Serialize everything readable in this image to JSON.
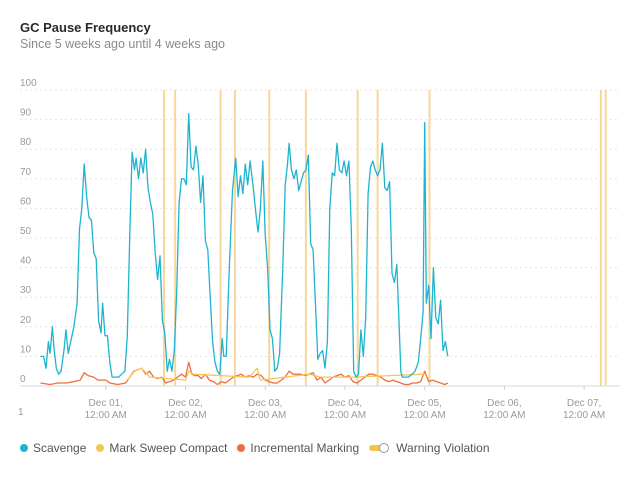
{
  "panel": {
    "title": "GC Pause Frequency",
    "subtitle": "Since 5 weeks ago until 4 weeks ago",
    "corner_label": "1"
  },
  "legend": [
    {
      "label": "Scavenge",
      "color": "#1eb3cf"
    },
    {
      "label": "Mark Sweep Compact",
      "color": "#f5c758"
    },
    {
      "label": "Incremental Marking",
      "color": "#f06e3e"
    },
    {
      "label": "Warning Violation",
      "color": "#f4c44e",
      "icon": "toggle-icon"
    }
  ],
  "chart_data": {
    "type": "line",
    "title": "GC Pause Frequency",
    "subtitle": "Since 5 weeks ago until 4 weeks ago",
    "ylim": [
      0,
      100
    ],
    "y_ticks": [
      "100",
      "90",
      "80",
      "70",
      "60",
      "50",
      "40",
      "30",
      "20",
      "10",
      "0"
    ],
    "x_ticks": [
      {
        "line1": "Dec 01,",
        "line2": "12:00 AM",
        "t": 0.5
      },
      {
        "line1": "Dec 02,",
        "line2": "12:00 AM",
        "t": 1.5
      },
      {
        "line1": "Dec 03,",
        "line2": "12:00 AM",
        "t": 2.5
      },
      {
        "line1": "Dec 04,",
        "line2": "12:00 AM",
        "t": 3.5
      },
      {
        "line1": "Dec 05,",
        "line2": "12:00 AM",
        "t": 4.5
      },
      {
        "line1": "Dec 06,",
        "line2": "12:00 AM",
        "t": 5.5
      },
      {
        "line1": "Dec 07,",
        "line2": "12:00 AM",
        "t": 6.5
      }
    ],
    "x_range": [
      -0.35,
      6.95
    ],
    "grid": true,
    "legend_position": "bottom",
    "warning_violations": [
      1.23,
      1.37,
      1.94,
      2.12,
      2.55,
      3.01,
      3.66,
      3.91,
      4.56,
      6.71,
      6.77
    ],
    "series": [
      {
        "name": "Scavenge",
        "color": "#1eb3cf",
        "points": [
          [
            -0.32,
            10
          ],
          [
            -0.28,
            10
          ],
          [
            -0.25,
            6
          ],
          [
            -0.22,
            15
          ],
          [
            -0.2,
            11
          ],
          [
            -0.17,
            20
          ],
          [
            -0.15,
            13
          ],
          [
            -0.12,
            6
          ],
          [
            -0.09,
            4
          ],
          [
            -0.06,
            5
          ],
          [
            -0.02,
            13
          ],
          [
            0,
            19
          ],
          [
            0.03,
            11
          ],
          [
            0.06,
            15
          ],
          [
            0.1,
            20
          ],
          [
            0.14,
            28
          ],
          [
            0.17,
            53
          ],
          [
            0.2,
            60
          ],
          [
            0.23,
            75
          ],
          [
            0.26,
            64
          ],
          [
            0.29,
            57
          ],
          [
            0.32,
            56
          ],
          [
            0.35,
            45
          ],
          [
            0.38,
            43
          ],
          [
            0.41,
            22
          ],
          [
            0.44,
            18
          ],
          [
            0.46,
            28
          ],
          [
            0.49,
            17
          ],
          [
            0.52,
            17
          ],
          [
            0.55,
            8
          ],
          [
            0.58,
            3
          ],
          [
            0.62,
            3
          ],
          [
            0.66,
            3
          ],
          [
            0.7,
            4
          ],
          [
            0.74,
            5
          ],
          [
            0.77,
            17
          ],
          [
            0.8,
            50
          ],
          [
            0.83,
            79
          ],
          [
            0.86,
            73
          ],
          [
            0.88,
            77
          ],
          [
            0.91,
            70
          ],
          [
            0.94,
            77
          ],
          [
            0.97,
            72
          ],
          [
            1.0,
            80
          ],
          [
            1.03,
            67
          ],
          [
            1.06,
            62
          ],
          [
            1.09,
            58
          ],
          [
            1.12,
            45
          ],
          [
            1.15,
            36
          ],
          [
            1.18,
            44
          ],
          [
            1.21,
            22
          ],
          [
            1.24,
            18
          ],
          [
            1.27,
            5
          ],
          [
            1.3,
            9
          ],
          [
            1.33,
            5
          ],
          [
            1.36,
            12
          ],
          [
            1.39,
            32
          ],
          [
            1.42,
            62
          ],
          [
            1.45,
            70
          ],
          [
            1.48,
            70
          ],
          [
            1.51,
            68
          ],
          [
            1.54,
            92
          ],
          [
            1.57,
            74
          ],
          [
            1.6,
            73
          ],
          [
            1.63,
            81
          ],
          [
            1.66,
            75
          ],
          [
            1.69,
            62
          ],
          [
            1.72,
            71
          ],
          [
            1.75,
            49
          ],
          [
            1.78,
            46
          ],
          [
            1.81,
            30
          ],
          [
            1.84,
            15
          ],
          [
            1.87,
            8
          ],
          [
            1.9,
            5
          ],
          [
            1.93,
            4
          ],
          [
            1.96,
            16
          ],
          [
            1.98,
            10
          ],
          [
            2.01,
            10
          ],
          [
            2.05,
            40
          ],
          [
            2.09,
            66
          ],
          [
            2.13,
            77
          ],
          [
            2.16,
            64
          ],
          [
            2.19,
            71
          ],
          [
            2.22,
            65
          ],
          [
            2.25,
            75
          ],
          [
            2.28,
            68
          ],
          [
            2.31,
            76
          ],
          [
            2.35,
            67
          ],
          [
            2.38,
            59
          ],
          [
            2.41,
            52
          ],
          [
            2.44,
            60
          ],
          [
            2.47,
            76
          ],
          [
            2.5,
            51
          ],
          [
            2.53,
            40
          ],
          [
            2.56,
            19
          ],
          [
            2.59,
            16
          ],
          [
            2.62,
            5
          ],
          [
            2.65,
            6
          ],
          [
            2.68,
            11
          ],
          [
            2.72,
            40
          ],
          [
            2.75,
            68
          ],
          [
            2.78,
            75
          ],
          [
            2.8,
            82
          ],
          [
            2.83,
            73
          ],
          [
            2.86,
            70
          ],
          [
            2.89,
            73
          ],
          [
            2.92,
            66
          ],
          [
            2.95,
            69
          ],
          [
            2.98,
            72
          ],
          [
            3.01,
            73
          ],
          [
            3.04,
            78
          ],
          [
            3.07,
            48
          ],
          [
            3.1,
            46
          ],
          [
            3.13,
            28
          ],
          [
            3.16,
            9
          ],
          [
            3.19,
            11
          ],
          [
            3.22,
            12
          ],
          [
            3.25,
            6
          ],
          [
            3.28,
            15
          ],
          [
            3.31,
            60
          ],
          [
            3.34,
            72
          ],
          [
            3.37,
            71
          ],
          [
            3.4,
            82
          ],
          [
            3.43,
            73
          ],
          [
            3.46,
            72
          ],
          [
            3.49,
            76
          ],
          [
            3.52,
            71
          ],
          [
            3.55,
            76
          ],
          [
            3.58,
            53
          ],
          [
            3.61,
            5
          ],
          [
            3.64,
            3
          ],
          [
            3.67,
            4
          ],
          [
            3.7,
            19
          ],
          [
            3.73,
            10
          ],
          [
            3.76,
            23
          ],
          [
            3.79,
            65
          ],
          [
            3.82,
            74
          ],
          [
            3.85,
            76
          ],
          [
            3.88,
            73
          ],
          [
            3.91,
            71
          ],
          [
            3.94,
            73
          ],
          [
            3.97,
            82
          ],
          [
            4.0,
            67
          ],
          [
            4.03,
            66
          ],
          [
            4.06,
            69
          ],
          [
            4.09,
            38
          ],
          [
            4.12,
            35
          ],
          [
            4.15,
            41
          ],
          [
            4.18,
            20
          ],
          [
            4.2,
            5
          ],
          [
            4.22,
            3
          ],
          [
            4.26,
            3
          ],
          [
            4.3,
            3
          ],
          [
            4.34,
            4
          ],
          [
            4.38,
            5
          ],
          [
            4.42,
            8
          ],
          [
            4.45,
            16
          ],
          [
            4.48,
            25
          ],
          [
            4.5,
            89
          ],
          [
            4.52,
            28
          ],
          [
            4.55,
            34
          ],
          [
            4.58,
            16
          ],
          [
            4.61,
            40
          ],
          [
            4.64,
            23
          ],
          [
            4.67,
            21
          ],
          [
            4.7,
            29
          ],
          [
            4.73,
            12
          ],
          [
            4.76,
            15
          ],
          [
            4.79,
            10
          ]
        ]
      },
      {
        "name": "Mark Sweep Compact",
        "color": "#f5c758",
        "points": [
          [
            0.77,
            2
          ],
          [
            0.86,
            5
          ],
          [
            0.95,
            6
          ],
          [
            1.05,
            3
          ],
          [
            1.5,
            2
          ],
          [
            1.54,
            5
          ],
          [
            1.6,
            4
          ],
          [
            2.3,
            3
          ],
          [
            2.4,
            6
          ],
          [
            2.44,
            2
          ],
          [
            3.05,
            4
          ],
          [
            3.2,
            3
          ],
          [
            3.6,
            3
          ],
          [
            4.5,
            4
          ]
        ]
      },
      {
        "name": "Incremental Marking",
        "color": "#f06e3e",
        "points": [
          [
            -0.32,
            1
          ],
          [
            -0.2,
            0.5
          ],
          [
            -0.1,
            1
          ],
          [
            0.0,
            1
          ],
          [
            0.1,
            1.5
          ],
          [
            0.18,
            2
          ],
          [
            0.23,
            4.5
          ],
          [
            0.28,
            3.5
          ],
          [
            0.35,
            3
          ],
          [
            0.4,
            2
          ],
          [
            0.5,
            2
          ],
          [
            0.55,
            1
          ],
          [
            0.65,
            0.5
          ],
          [
            0.75,
            1
          ],
          [
            0.8,
            3
          ],
          [
            0.85,
            5
          ],
          [
            0.9,
            5.5
          ],
          [
            0.95,
            6
          ],
          [
            1.0,
            4
          ],
          [
            1.05,
            5
          ],
          [
            1.1,
            3
          ],
          [
            1.15,
            2.5
          ],
          [
            1.2,
            3
          ],
          [
            1.25,
            1
          ],
          [
            1.3,
            1.5
          ],
          [
            1.35,
            2
          ],
          [
            1.4,
            3
          ],
          [
            1.45,
            4
          ],
          [
            1.5,
            3
          ],
          [
            1.54,
            8
          ],
          [
            1.58,
            4
          ],
          [
            1.62,
            3.5
          ],
          [
            1.66,
            3.5
          ],
          [
            1.7,
            2.5
          ],
          [
            1.75,
            4
          ],
          [
            1.8,
            2
          ],
          [
            1.85,
            1.5
          ],
          [
            1.9,
            0.5
          ],
          [
            1.95,
            1.5
          ],
          [
            2.0,
            1
          ],
          [
            2.05,
            2
          ],
          [
            2.1,
            3
          ],
          [
            2.15,
            3.5
          ],
          [
            2.2,
            4
          ],
          [
            2.25,
            3
          ],
          [
            2.3,
            3.5
          ],
          [
            2.35,
            3
          ],
          [
            2.4,
            4
          ],
          [
            2.45,
            3.5
          ],
          [
            2.5,
            2
          ],
          [
            2.55,
            1.5
          ],
          [
            2.6,
            1
          ],
          [
            2.65,
            1
          ],
          [
            2.7,
            2
          ],
          [
            2.75,
            3
          ],
          [
            2.8,
            5
          ],
          [
            2.85,
            4
          ],
          [
            2.9,
            4
          ],
          [
            2.95,
            4
          ],
          [
            3.0,
            3.5
          ],
          [
            3.05,
            4
          ],
          [
            3.1,
            4.5
          ],
          [
            3.15,
            2
          ],
          [
            3.2,
            3
          ],
          [
            3.25,
            1
          ],
          [
            3.3,
            2
          ],
          [
            3.35,
            3
          ],
          [
            3.4,
            3.5
          ],
          [
            3.45,
            4
          ],
          [
            3.5,
            3
          ],
          [
            3.55,
            3.5
          ],
          [
            3.6,
            1.5
          ],
          [
            3.65,
            1
          ],
          [
            3.7,
            2
          ],
          [
            3.75,
            3
          ],
          [
            3.8,
            4
          ],
          [
            3.85,
            4
          ],
          [
            3.9,
            3.5
          ],
          [
            3.95,
            3
          ],
          [
            4.0,
            2
          ],
          [
            4.05,
            1.5
          ],
          [
            4.1,
            2
          ],
          [
            4.15,
            1.5
          ],
          [
            4.2,
            1
          ],
          [
            4.25,
            0.5
          ],
          [
            4.3,
            0.5
          ],
          [
            4.35,
            1
          ],
          [
            4.4,
            1
          ],
          [
            4.45,
            1.5
          ],
          [
            4.5,
            5
          ],
          [
            4.55,
            1.5
          ],
          [
            4.6,
            2
          ],
          [
            4.65,
            1.5
          ],
          [
            4.7,
            1
          ],
          [
            4.75,
            0.5
          ],
          [
            4.79,
            1
          ]
        ]
      }
    ]
  }
}
